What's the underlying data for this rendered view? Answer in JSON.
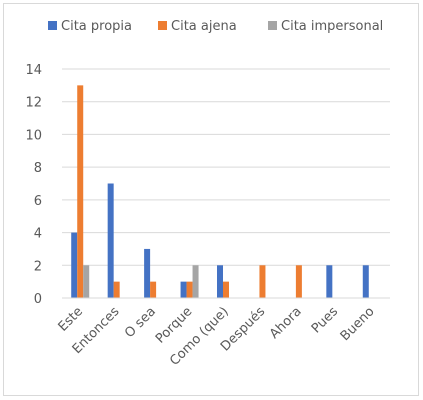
{
  "chart_data": {
    "type": "bar",
    "categories": [
      "Este",
      "Entonces",
      "O sea",
      "Porque",
      "Como (que)",
      "Después",
      "Ahora",
      "Pues",
      "Bueno"
    ],
    "series": [
      {
        "name": "Cita propia",
        "color": "#4472c4",
        "values": [
          4,
          7,
          3,
          1,
          2,
          0,
          0,
          2,
          2
        ]
      },
      {
        "name": "Cita ajena",
        "color": "#ed7d31",
        "values": [
          13,
          1,
          1,
          1,
          1,
          2,
          2,
          0,
          0
        ]
      },
      {
        "name": "Cita impersonal",
        "color": "#a5a5a5",
        "values": [
          2,
          0,
          0,
          2,
          0,
          0,
          0,
          0,
          0
        ]
      }
    ],
    "yticks": [
      0,
      2,
      4,
      6,
      8,
      10,
      12,
      14
    ],
    "ylim": [
      0,
      14
    ],
    "grid": true,
    "legend_position": "top"
  }
}
